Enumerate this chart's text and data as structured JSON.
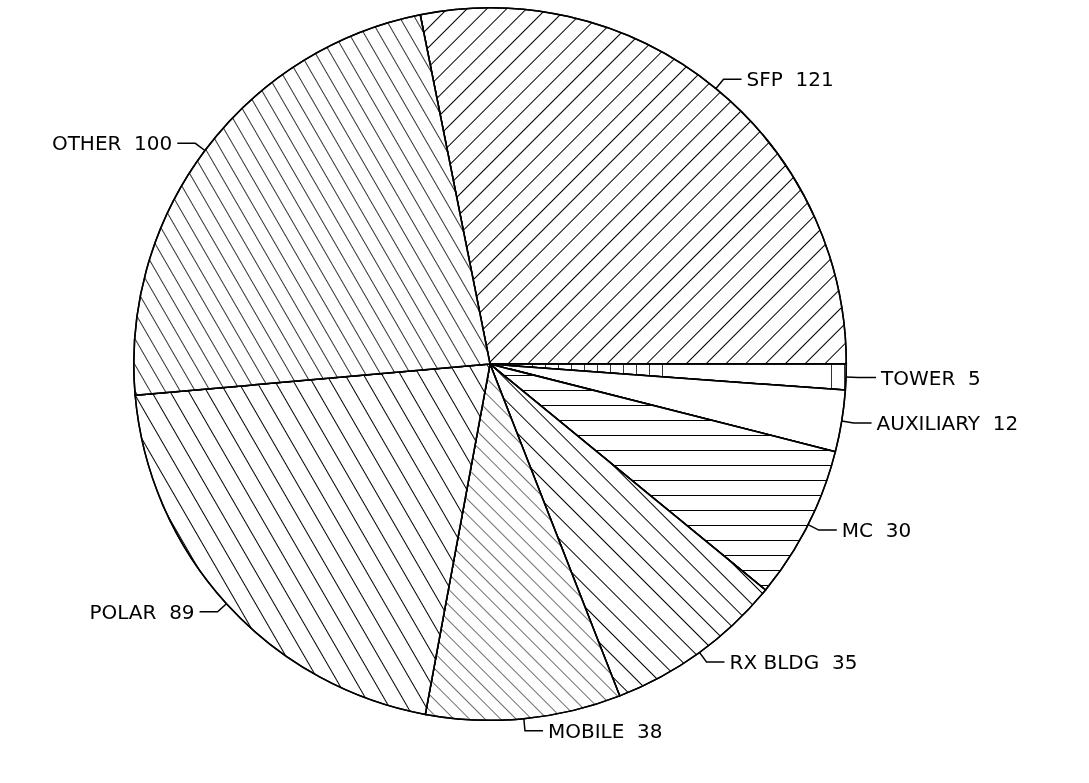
{
  "chart_data": {
    "type": "pie",
    "categories": [
      "SFP",
      "TOWER",
      "AUXILIARY",
      "MC",
      "RX BLDG",
      "MOBILE",
      "POLAR",
      "OTHER"
    ],
    "values": [
      121,
      5,
      12,
      30,
      35,
      38,
      89,
      100
    ],
    "colors": [
      "#ffffff",
      "#ffffff",
      "#ffffff",
      "#ffffff",
      "#ffffff",
      "#ffffff",
      "#ffffff",
      "#ffffff"
    ],
    "data_labels": true,
    "legend": false
  }
}
